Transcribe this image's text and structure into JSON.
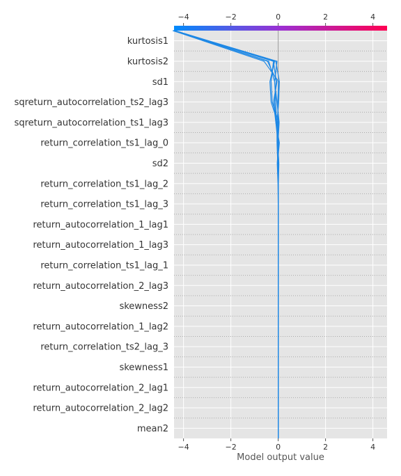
{
  "chart_data": {
    "type": "decision",
    "title": "",
    "xlabel": "Model output value",
    "ylabel": "",
    "xlim": [
      -4.4,
      4.6
    ],
    "base_value": 0,
    "x_ticks": [
      -4,
      -2,
      0,
      2,
      4
    ],
    "x_tick_labels": [
      "−4",
      "−2",
      "0",
      "2",
      "4"
    ],
    "grid": true,
    "colorbar": {
      "position": "top",
      "low_color": "#008bfb",
      "mid_color": "#9b2fd2",
      "high_color": "#ff0052"
    },
    "line_color": "#1e88e5",
    "features_top_to_bottom": [
      "kurtosis1",
      "kurtosis2",
      "sd1",
      "sqreturn_autocorrelation_ts2_lag3",
      "sqreturn_autocorrelation_ts1_lag3",
      "return_correlation_ts1_lag_0",
      "sd2",
      "return_correlation_ts1_lag_2",
      "return_correlation_ts1_lag_3",
      "return_autocorrelation_1_lag1",
      "return_autocorrelation_1_lag3",
      "return_correlation_ts1_lag_1",
      "return_autocorrelation_2_lag3",
      "skewness2",
      "return_autocorrelation_1_lag2",
      "return_correlation_ts2_lag_3",
      "skewness1",
      "return_autocorrelation_2_lag1",
      "return_autocorrelation_2_lag2",
      "mean2"
    ],
    "series": [
      {
        "values": [
          0,
          0,
          0,
          0,
          0,
          0,
          0,
          0,
          0,
          0,
          0,
          0,
          0,
          0,
          0,
          0,
          0,
          -0.02,
          0.02,
          -0.6,
          -4.45
        ]
      },
      {
        "values": [
          0,
          0,
          0,
          0,
          0,
          0,
          0,
          0,
          0,
          0,
          0,
          0,
          0,
          0,
          0,
          -0.01,
          0.04,
          -0.05,
          -0.15,
          -0.4,
          -4.42
        ]
      },
      {
        "values": [
          0,
          0,
          0,
          0,
          0,
          0,
          0,
          0,
          0,
          0,
          0,
          0,
          0,
          0.01,
          -0.03,
          0.05,
          -0.1,
          -0.2,
          -0.05,
          -0.45,
          -4.4
        ]
      },
      {
        "values": [
          0,
          0,
          0,
          0,
          0,
          0,
          0,
          0,
          0,
          0,
          0,
          0,
          0,
          0,
          -0.01,
          -0.02,
          0.02,
          -0.25,
          -0.3,
          -0.2,
          -4.38
        ]
      },
      {
        "values": [
          0,
          0,
          0,
          0,
          0,
          0,
          0,
          0,
          0,
          0,
          0,
          0,
          0,
          0.01,
          0.03,
          -0.03,
          -0.02,
          -0.3,
          -0.35,
          -0.15,
          -4.45
        ]
      },
      {
        "values": [
          0,
          0,
          0,
          0,
          0,
          0,
          0,
          0,
          0,
          0,
          0,
          0,
          0,
          0,
          -0.02,
          -0.05,
          -0.05,
          0.02,
          0.05,
          -0.1,
          -4.36
        ]
      },
      {
        "values": [
          0,
          0,
          0,
          0,
          0,
          0,
          0,
          0,
          0,
          0,
          0,
          0,
          0,
          -0.01,
          -0.04,
          0.02,
          -0.08,
          -0.1,
          -0.15,
          -0.05,
          -4.4
        ]
      },
      {
        "values": [
          0,
          0,
          0,
          0,
          0,
          0,
          0,
          0,
          0,
          0,
          0,
          0,
          0,
          0,
          0.02,
          -0.01,
          -0.1,
          -0.15,
          -0.08,
          -0.2,
          -4.43
        ]
      }
    ]
  }
}
